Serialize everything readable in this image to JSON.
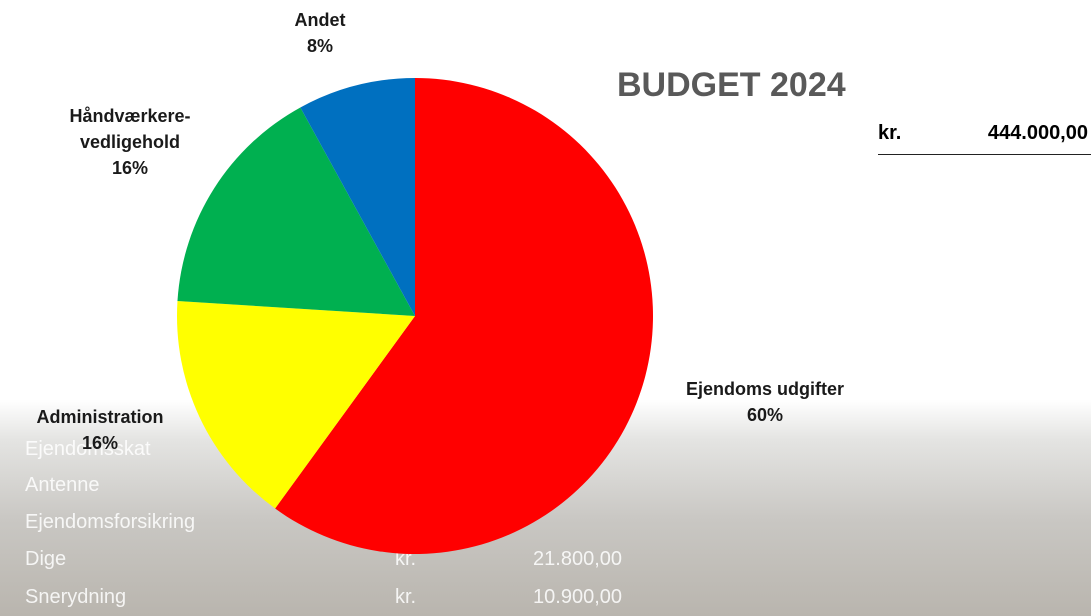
{
  "chart_data": {
    "type": "pie",
    "title": "BUDGET 2024",
    "categories": [
      "Ejendoms udgifter",
      "Administration",
      "Håndværkere-\nvedligehold",
      "Andet"
    ],
    "values": [
      60,
      16,
      16,
      8
    ],
    "value_labels": [
      "60%",
      "16%",
      "16%",
      "8%"
    ],
    "colors": [
      "#ff0000",
      "#ffff00",
      "#00b050",
      "#0070c0"
    ]
  },
  "total": {
    "currency": "kr.",
    "amount": "444.000,00"
  },
  "table": {
    "rows": [
      [
        "Ejendomsskat"
      ],
      [
        "Antenne"
      ],
      [
        "Ejendomsforsikring"
      ],
      [
        "Dige",
        "kr.",
        "21.800,00"
      ],
      [
        "Snerydning",
        "kr.",
        "10.900,00"
      ]
    ]
  }
}
